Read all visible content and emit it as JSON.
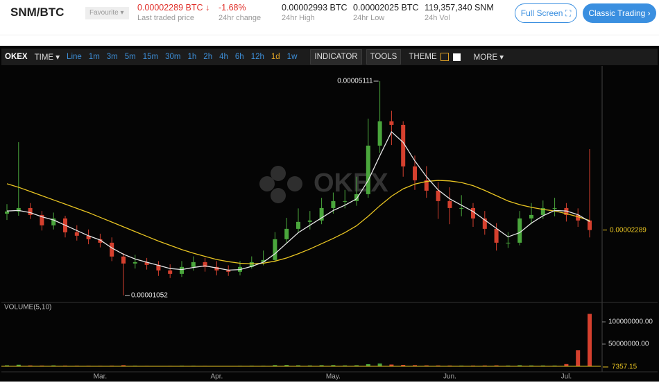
{
  "header": {
    "pair": "SNM/BTC",
    "favourite": "Favourite",
    "last_price": "0.00002289 BTC",
    "last_price_label": "Last traded price",
    "change": "-1.68%",
    "change_label": "24hr change",
    "high": "0.00002993 BTC",
    "high_label": "24hr High",
    "low": "0.00002025 BTC",
    "low_label": "24hr Low",
    "volume": "119,357,340 SNM",
    "volume_label": "24h Vol",
    "full_screen": "Full Screen",
    "classic_trading": "Classic Trading"
  },
  "toolbar": {
    "brand": "OKEX",
    "time": "TIME",
    "intervals": [
      "Line",
      "1m",
      "3m",
      "5m",
      "15m",
      "30m",
      "1h",
      "2h",
      "4h",
      "6h",
      "12h",
      "1d",
      "1w"
    ],
    "indicator": "INDICATOR",
    "tools": "TOOLS",
    "theme": "THEME",
    "more": "MORE"
  },
  "chart_data": {
    "type": "candlestick",
    "watermark": "OKEX",
    "volume_title": "VOLUME(5,10)",
    "categories": [
      null,
      null,
      null,
      null,
      null,
      null,
      null,
      null,
      "Mar.",
      null,
      null,
      null,
      null,
      null,
      null,
      null,
      null,
      null,
      "Apr.",
      null,
      null,
      null,
      null,
      null,
      null,
      null,
      null,
      null,
      "May.",
      null,
      null,
      null,
      null,
      null,
      null,
      null,
      null,
      null,
      "Jun.",
      null,
      null,
      null,
      null,
      null,
      null,
      null,
      null,
      null,
      "Jul.",
      null,
      null
    ],
    "ohlc": [
      [
        2.6e-05,
        2.78e-05,
        2.48e-05,
        2.641e-05
      ],
      [
        2.641e-05,
        3.955e-05,
        2.56e-05,
        2.706e-05
      ],
      [
        2.706e-05,
        2.8e-05,
        2.5e-05,
        2.575e-05
      ],
      [
        2.575e-05,
        2.65e-05,
        2.28e-05,
        2.378e-05
      ],
      [
        2.378e-05,
        2.62e-05,
        2.3e-05,
        2.509e-05
      ],
      [
        2.509e-05,
        2.56e-05,
        2.15e-05,
        2.246e-05
      ],
      [
        2.246e-05,
        2.38e-05,
        2.09e-05,
        2.181e-05
      ],
      [
        2.181e-05,
        2.3e-05,
        2.02e-05,
        2.115e-05
      ],
      [
        2.115e-05,
        2.22e-05,
        1.96e-05,
        2.049e-05
      ],
      [
        2.049e-05,
        2.15e-05,
        1.7e-05,
        1.787e-05
      ],
      [
        1.787e-05,
        1.85e-05,
        1.052e-05,
        1.655e-05
      ],
      [
        1.655e-05,
        1.82e-05,
        1.56e-05,
        1.681e-05
      ],
      [
        1.681e-05,
        1.76e-05,
        1.54e-05,
        1.629e-05
      ],
      [
        1.629e-05,
        1.7e-05,
        1.42e-05,
        1.524e-05
      ],
      [
        1.524e-05,
        1.64e-05,
        1.38e-05,
        1.458e-05
      ],
      [
        1.458e-05,
        1.7e-05,
        1.4e-05,
        1.59e-05
      ],
      [
        1.59e-05,
        1.79e-05,
        1.52e-05,
        1.681e-05
      ],
      [
        1.681e-05,
        1.76e-05,
        1.5e-05,
        1.59e-05
      ],
      [
        1.59e-05,
        1.7e-05,
        1.43e-05,
        1.524e-05
      ],
      [
        1.524e-05,
        1.62e-05,
        1.42e-05,
        1.498e-05
      ],
      [
        1.498e-05,
        1.7e-05,
        1.43e-05,
        1.59e-05
      ],
      [
        1.59e-05,
        1.79e-05,
        1.56e-05,
        1.681e-05
      ],
      [
        1.681e-05,
        1.9e-05,
        1.62e-05,
        1.721e-05
      ],
      [
        1.721e-05,
        2.25e-05,
        1.68e-05,
        2.115e-05
      ],
      [
        2.115e-05,
        2.52e-05,
        2.05e-05,
        2.312e-05
      ],
      [
        2.312e-05,
        2.7e-05,
        2.25e-05,
        2.444e-05
      ],
      [
        2.444e-05,
        2.65e-05,
        2.3e-05,
        2.47e-05
      ],
      [
        2.47e-05,
        2.9e-05,
        2.4e-05,
        2.706e-05
      ],
      [
        2.706e-05,
        3e-05,
        2.6e-05,
        2.838e-05
      ],
      [
        2.838e-05,
        3.05e-05,
        2.7e-05,
        2.838e-05
      ],
      [
        2.838e-05,
        3.3e-05,
        2.75e-05,
        2.969e-05
      ],
      [
        2.969e-05,
        4.4e-05,
        2.9e-05,
        3.889e-05
      ],
      [
        3.889e-05,
        5.111e-05,
        3.75e-05,
        4.349e-05
      ],
      [
        4.349e-05,
        4.55e-05,
        3.9e-05,
        4.283e-05
      ],
      [
        4.283e-05,
        4.35e-05,
        3.3e-05,
        3.495e-05
      ],
      [
        3.495e-05,
        3.7e-05,
        3.05e-05,
        3.232e-05
      ],
      [
        3.232e-05,
        3.5e-05,
        2.9e-05,
        3.035e-05
      ],
      [
        3.035e-05,
        3.2e-05,
        2.5e-05,
        2.838e-05
      ],
      [
        2.838e-05,
        3.1e-05,
        2.4e-05,
        2.706e-05
      ],
      [
        2.706e-05,
        2.95e-05,
        2.55e-05,
        2.706e-05
      ],
      [
        2.706e-05,
        2.8e-05,
        2.35e-05,
        2.509e-05
      ],
      [
        2.509e-05,
        2.65e-05,
        2.2e-05,
        2.312e-05
      ],
      [
        2.312e-05,
        2.42e-05,
        1.9e-05,
        2.049e-05
      ],
      [
        2.049e-05,
        2.25e-05,
        1.95e-05,
        2.049e-05
      ],
      [
        2.049e-05,
        2.65e-05,
        2e-05,
        2.509e-05
      ],
      [
        2.509e-05,
        2.8e-05,
        2.4e-05,
        2.575e-05
      ],
      [
        2.575e-05,
        2.85e-05,
        2.5e-05,
        2.706e-05
      ],
      [
        2.706e-05,
        2.9e-05,
        2.55e-05,
        2.706e-05
      ],
      [
        2.706e-05,
        2.8e-05,
        2.45e-05,
        2.575e-05
      ],
      [
        2.575e-05,
        2.7e-05,
        2.35e-05,
        2.47e-05
      ],
      [
        2.47e-05,
        3.823e-05,
        2.15e-05,
        2.289e-05
      ]
    ],
    "ma_fast": {
      "color": "#e6e6e6",
      "values": [
        2.65e-05,
        2.66e-05,
        2.62e-05,
        2.54e-05,
        2.48e-05,
        2.38e-05,
        2.28e-05,
        2.18e-05,
        2.1e-05,
        1.95e-05,
        1.83e-05,
        1.74e-05,
        1.68e-05,
        1.62e-05,
        1.56e-05,
        1.54e-05,
        1.58e-05,
        1.61e-05,
        1.57e-05,
        1.53e-05,
        1.54e-05,
        1.6e-05,
        1.68e-05,
        1.84e-05,
        2.04e-05,
        2.24e-05,
        2.38e-05,
        2.52e-05,
        2.66e-05,
        2.76e-05,
        2.88e-05,
        3.23e-05,
        3.7e-05,
        4.15e-05,
        3.95e-05,
        3.6e-05,
        3.3e-05,
        3.05e-05,
        2.88e-05,
        2.76e-05,
        2.64e-05,
        2.48e-05,
        2.32e-05,
        2.16e-05,
        2.24e-05,
        2.42e-05,
        2.56e-05,
        2.66e-05,
        2.65e-05,
        2.58e-05,
        2.45e-05
      ]
    },
    "ma_slow": {
      "color": "#e8c422",
      "values": [
        3.166e-05,
        3.1e-05,
        3.02e-05,
        2.94e-05,
        2.86e-05,
        2.78e-05,
        2.7e-05,
        2.62e-05,
        2.53e-05,
        2.44e-05,
        2.35e-05,
        2.26e-05,
        2.17e-05,
        2.08e-05,
        2e-05,
        1.92e-05,
        1.85e-05,
        1.79e-05,
        1.73e-05,
        1.69e-05,
        1.66e-05,
        1.65e-05,
        1.66e-05,
        1.7e-05,
        1.76e-05,
        1.84e-05,
        1.93e-05,
        2.03e-05,
        2.13e-05,
        2.24e-05,
        2.37e-05,
        2.55e-05,
        2.75e-05,
        2.93e-05,
        3.07e-05,
        3.16e-05,
        3.21e-05,
        3.23e-05,
        3.22e-05,
        3.19e-05,
        3.13e-05,
        3.04e-05,
        2.94e-05,
        2.84e-05,
        2.77e-05,
        2.72e-05,
        2.68e-05,
        2.65e-05,
        2.6e-05,
        2.54e-05,
        2.47e-05
      ]
    },
    "up_color": "#4aa63c",
    "down_color": "#d5402e",
    "ylim": [
      9.3e-06,
      5.4e-05
    ],
    "volume": [
      2100000,
      3500000,
      1800000,
      1500000,
      1900000,
      1400000,
      1200000,
      1100000,
      1000000,
      1300000,
      2400000,
      1200000,
      900000,
      800000,
      900000,
      1200000,
      1100000,
      900000,
      800000,
      800000,
      1000000,
      1200000,
      1100000,
      2600000,
      2900000,
      2200000,
      1800000,
      2400000,
      2600000,
      1900000,
      2300000,
      4800000,
      6200000,
      3900000,
      3100000,
      2500000,
      2000000,
      1800000,
      1600000,
      1400000,
      1500000,
      1700000,
      2000000,
      1600000,
      2300000,
      1800000,
      1700000,
      1500000,
      5000000,
      36000000,
      118000000
    ],
    "volume_last": 7357.15,
    "volume_ma_color": "#e8c422",
    "vlim": [
      0,
      137500000
    ],
    "vticks": [
      {
        "value": 100000000,
        "label": "100000000.00"
      },
      {
        "value": 50000000,
        "label": "50000000.00"
      }
    ]
  }
}
